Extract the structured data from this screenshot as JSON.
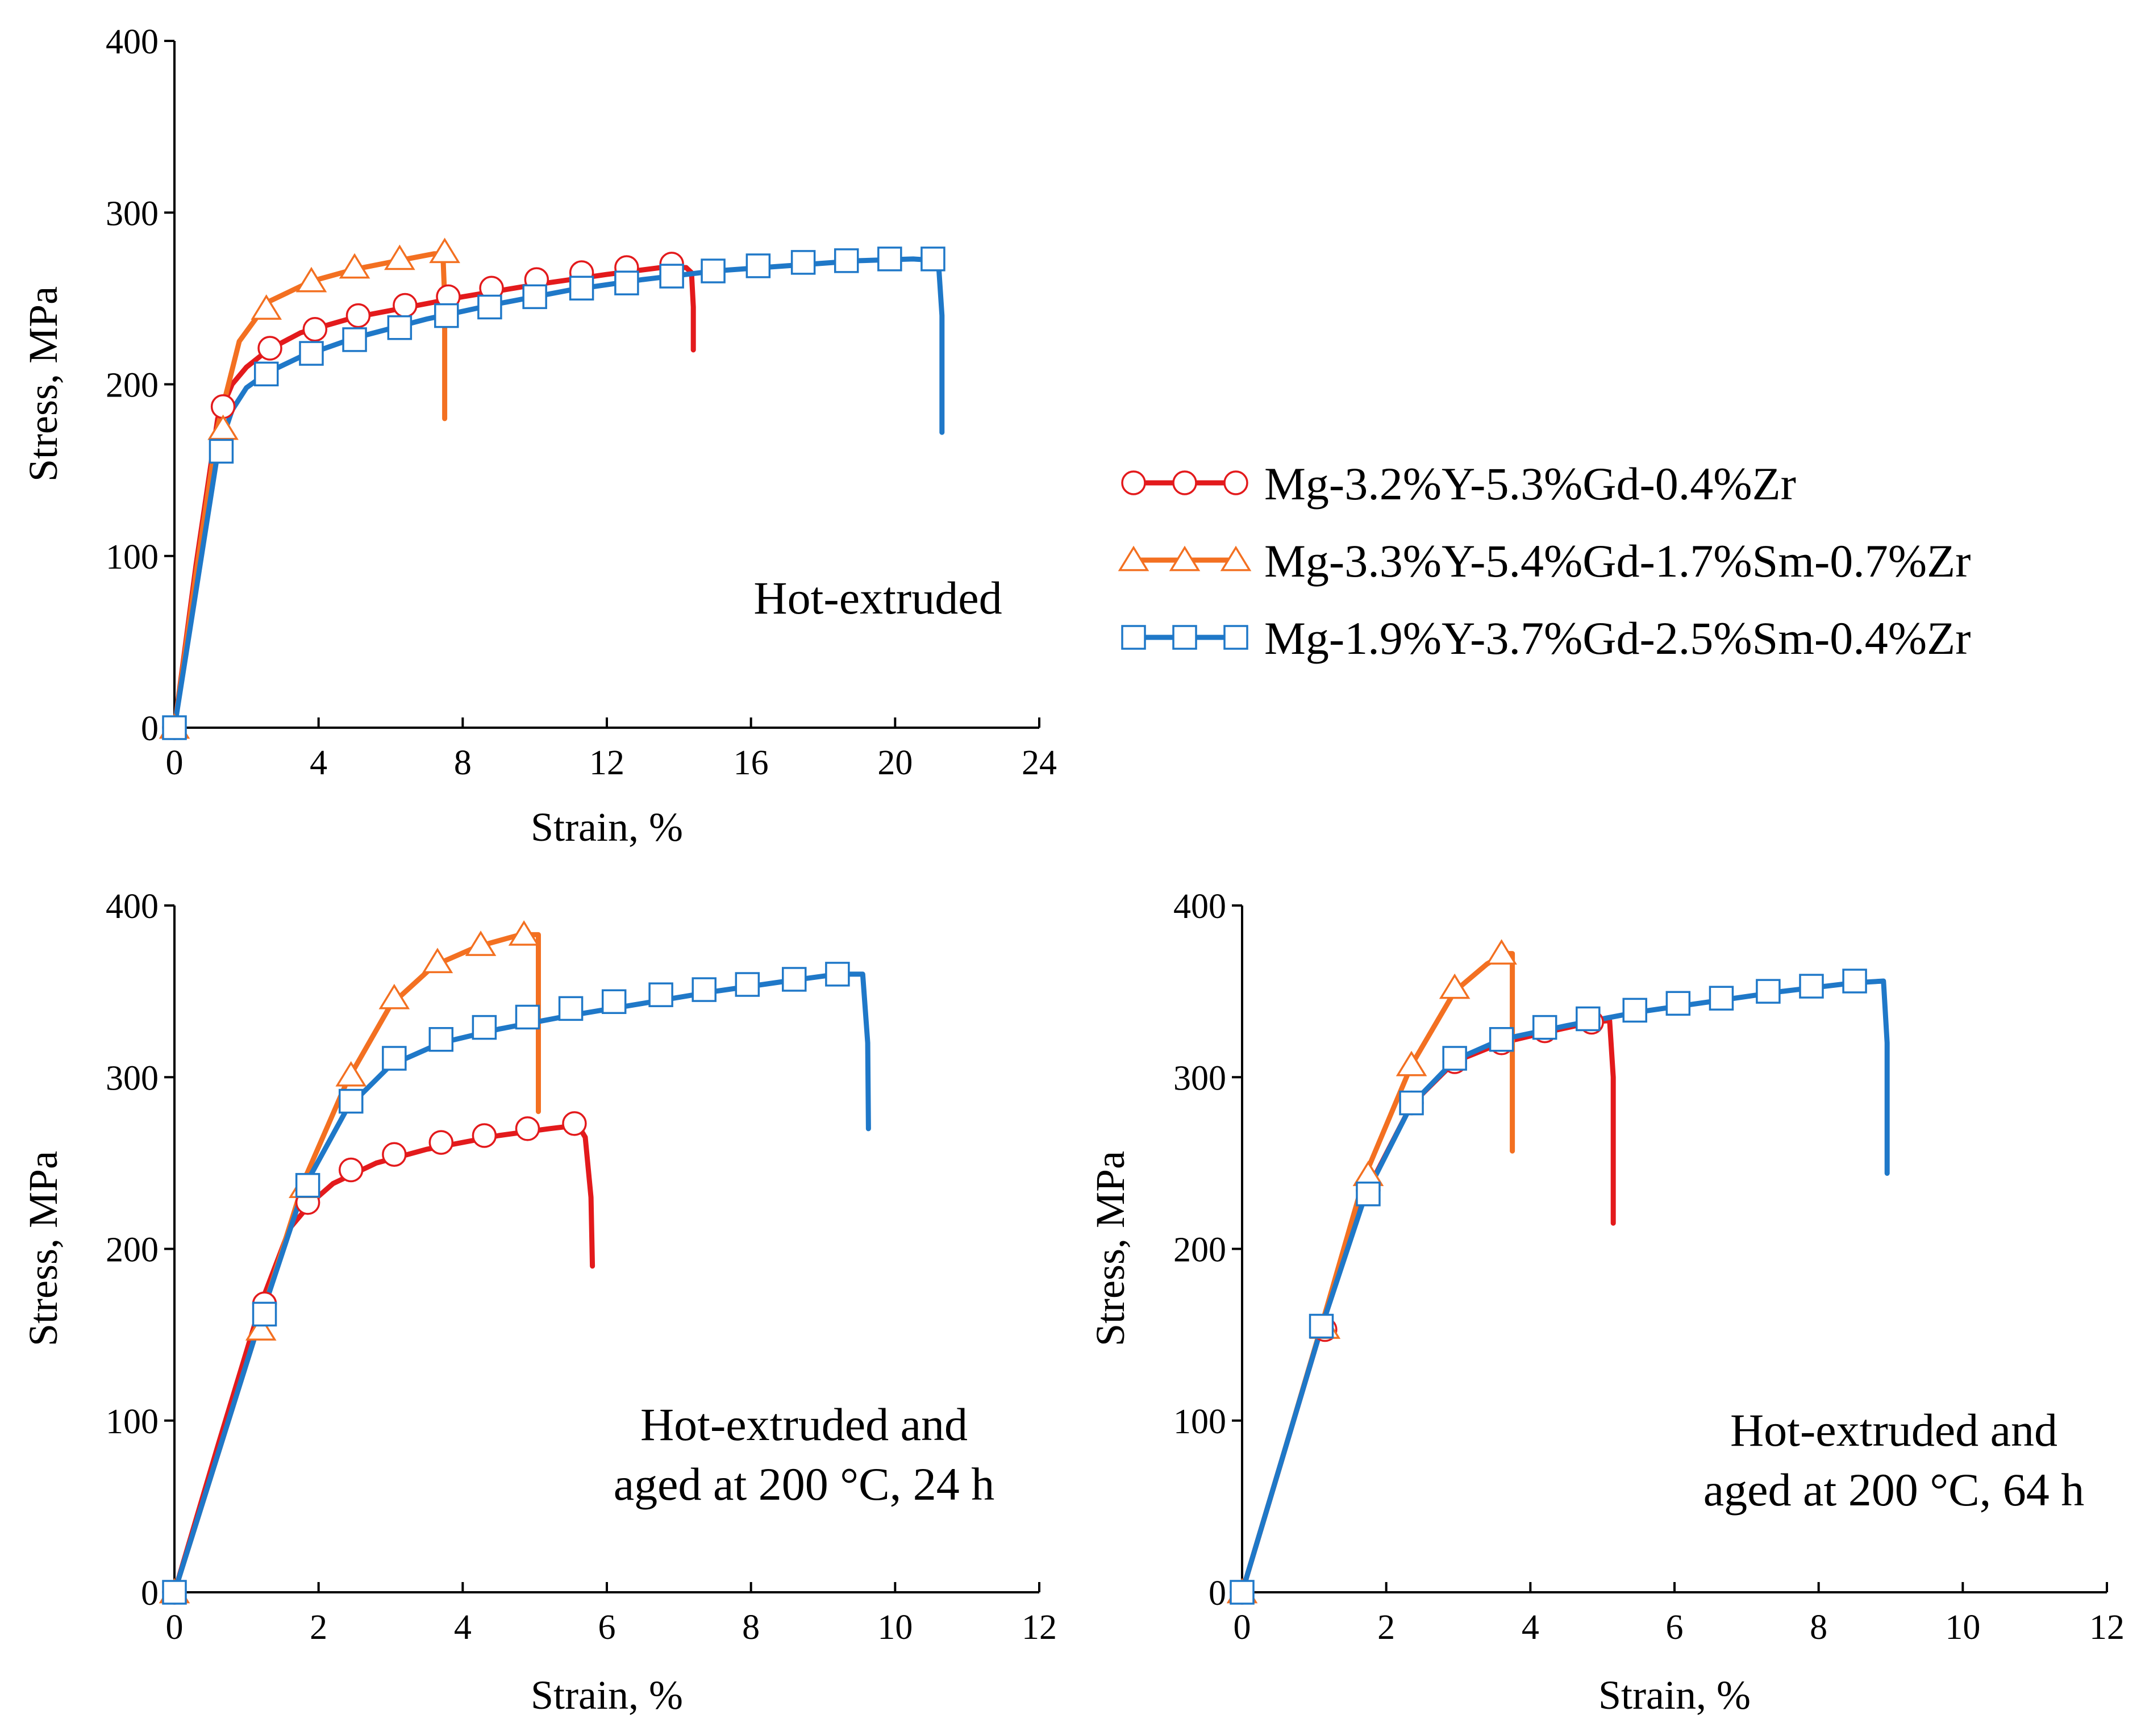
{
  "series_styles": [
    {
      "name": "Mg-3.2%Y-5.3%Gd-0.4%Zr",
      "color": "#e31a1c",
      "marker": "circle"
    },
    {
      "name": "Mg-3.3%Y-5.4%Gd-1.7%Sm-0.7%Zr",
      "color": "#f37021",
      "marker": "triangle"
    },
    {
      "name": "Mg-1.9%Y-3.7%Gd-2.5%Sm-0.4%Zr",
      "color": "#1f78c8",
      "marker": "square"
    }
  ],
  "legend": {
    "items": [
      {
        "label": "Mg-3.2%Y-5.3%Gd-0.4%Zr"
      },
      {
        "label": "Mg-3.3%Y-5.4%Gd-1.7%Sm-0.7%Zr"
      },
      {
        "label": "Mg-1.9%Y-3.7%Gd-2.5%Sm-0.4%Zr"
      }
    ]
  },
  "chart_data": [
    {
      "type": "line",
      "title": "",
      "annotation": [
        "Hot-extruded"
      ],
      "xlabel": "Strain, %",
      "ylabel": "Stress, MPa",
      "xlim": [
        0,
        24
      ],
      "ylim": [
        0,
        400
      ],
      "xticks": [
        0,
        4,
        8,
        12,
        16,
        20,
        24
      ],
      "yticks": [
        0,
        100,
        200,
        300,
        400
      ],
      "series": [
        {
          "name": "Mg-3.2%Y-5.3%Gd-0.4%Zr",
          "x": [
            0,
            0.6,
            1.2,
            1.6,
            2.0,
            2.6,
            3.5,
            5.0,
            6.5,
            8.0,
            10.0,
            12.0,
            13.5,
            14.2,
            14.35,
            14.4,
            14.4
          ],
          "y": [
            0,
            95,
            180,
            200,
            210,
            220,
            230,
            239,
            245,
            251,
            258,
            264,
            268,
            268,
            265,
            245,
            220
          ],
          "markers_x": [
            0,
            1.35,
            2.65,
            3.9,
            5.1,
            6.4,
            7.6,
            8.8,
            10.05,
            11.3,
            12.55,
            13.8
          ],
          "markers_y": [
            0,
            187,
            221,
            232,
            240,
            246,
            251,
            256,
            261,
            265,
            268,
            270
          ]
        },
        {
          "name": "Mg-3.3%Y-5.4%Gd-1.7%Sm-0.7%Zr",
          "x": [
            0,
            0.6,
            1.2,
            1.8,
            2.6,
            3.8,
            5.0,
            6.2,
            7.2,
            7.45,
            7.5,
            7.5
          ],
          "y": [
            0,
            90,
            175,
            225,
            248,
            260,
            267,
            272,
            276,
            276,
            250,
            180
          ],
          "markers_x": [
            0,
            1.35,
            2.55,
            3.8,
            5.0,
            6.25,
            7.5
          ],
          "markers_y": [
            0,
            174,
            244,
            260,
            268,
            273,
            277
          ]
        },
        {
          "name": "Mg-1.9%Y-3.7%Gd-2.5%Sm-0.4%Zr",
          "x": [
            0,
            0.6,
            1.2,
            1.6,
            2.0,
            2.6,
            3.5,
            5.0,
            7.0,
            9.0,
            11.0,
            13.0,
            15.0,
            17.0,
            19.0,
            20.5,
            21.2,
            21.3,
            21.3
          ],
          "y": [
            0,
            80,
            160,
            185,
            198,
            207,
            216,
            227,
            238,
            247,
            255,
            261,
            266,
            269,
            272,
            273,
            272,
            240,
            172
          ],
          "markers_x": [
            0,
            1.3,
            2.55,
            3.8,
            5.0,
            6.25,
            7.55,
            8.75,
            10.0,
            11.3,
            12.55,
            13.8,
            14.95,
            16.2,
            17.45,
            18.65,
            19.85,
            21.05
          ],
          "markers_y": [
            0,
            161,
            206,
            218,
            226,
            233,
            240,
            245,
            251,
            256,
            259,
            263,
            266,
            269,
            271,
            272,
            273,
            273
          ]
        }
      ]
    },
    {
      "type": "line",
      "title": "",
      "annotation": [
        "Hot-extruded and",
        "aged at 200 °C, 24 h"
      ],
      "xlabel": "Strain, %",
      "ylabel": "Stress, MPa",
      "xlim": [
        0,
        12
      ],
      "ylim": [
        0,
        400
      ],
      "xticks": [
        0,
        2,
        4,
        6,
        8,
        10,
        12
      ],
      "yticks": [
        0,
        100,
        200,
        300,
        400
      ],
      "series": [
        {
          "name": "Mg-3.2%Y-5.3%Gd-0.4%Zr",
          "x": [
            0,
            0.6,
            1.2,
            1.6,
            1.9,
            2.2,
            2.8,
            3.5,
            4.5,
            5.2,
            5.6,
            5.7,
            5.78,
            5.8
          ],
          "y": [
            0,
            85,
            168,
            212,
            227,
            238,
            250,
            258,
            266,
            270,
            272,
            265,
            230,
            190
          ],
          "markers_x": [
            0,
            1.25,
            1.85,
            2.45,
            3.05,
            3.7,
            4.3,
            4.9,
            5.55
          ],
          "markers_y": [
            0,
            168,
            227,
            246,
            255,
            262,
            266,
            270,
            273
          ]
        },
        {
          "name": "Mg-3.3%Y-5.4%Gd-1.7%Sm-0.7%Zr",
          "x": [
            0,
            0.6,
            1.2,
            1.8,
            2.4,
            3.0,
            3.6,
            4.2,
            4.8,
            5.05,
            5.05,
            5.05
          ],
          "y": [
            0,
            80,
            160,
            240,
            298,
            342,
            365,
            376,
            383,
            383,
            350,
            280
          ],
          "markers_x": [
            0,
            1.2,
            1.8,
            2.45,
            3.05,
            3.65,
            4.25,
            4.85
          ],
          "markers_y": [
            0,
            153,
            236,
            301,
            346,
            367,
            377,
            383
          ]
        },
        {
          "name": "Mg-1.9%Y-3.7%Gd-2.5%Sm-0.4%Zr",
          "x": [
            0,
            0.6,
            1.2,
            1.8,
            2.4,
            3.0,
            3.7,
            4.5,
            5.5,
            6.5,
            7.5,
            8.5,
            9.2,
            9.55,
            9.62,
            9.63
          ],
          "y": [
            0,
            80,
            160,
            236,
            282,
            307,
            320,
            328,
            336,
            343,
            350,
            356,
            360,
            360,
            320,
            270
          ],
          "markers_x": [
            0,
            1.25,
            1.85,
            2.45,
            3.05,
            3.7,
            4.3,
            4.9,
            5.5,
            6.1,
            6.75,
            7.35,
            7.95,
            8.6,
            9.2
          ],
          "markers_y": [
            0,
            162,
            237,
            286,
            311,
            322,
            329,
            335,
            340,
            344,
            348,
            351,
            354,
            357,
            360
          ]
        }
      ]
    },
    {
      "type": "line",
      "title": "",
      "annotation": [
        "Hot-extruded and",
        "aged at 200 °C, 64 h"
      ],
      "xlabel": "Strain, %",
      "ylabel": "Stress, MPa",
      "xlim": [
        0,
        12
      ],
      "ylim": [
        0,
        400
      ],
      "xticks": [
        0,
        2,
        4,
        6,
        8,
        10,
        12
      ],
      "yticks": [
        0,
        100,
        200,
        300,
        400
      ],
      "series": [
        {
          "name": "Mg-3.2%Y-5.3%Gd-0.4%Zr",
          "x": [
            0,
            0.55,
            1.1,
            1.7,
            2.35,
            2.95,
            3.6,
            4.2,
            4.85,
            5.1,
            5.15,
            5.15
          ],
          "y": [
            0,
            77,
            154,
            231,
            284,
            309,
            320,
            326,
            332,
            333,
            300,
            215
          ],
          "markers_x": [
            0,
            1.15,
            1.75,
            2.35,
            2.95,
            3.6,
            4.2,
            4.85
          ],
          "markers_y": [
            0,
            153,
            234,
            285,
            309,
            320,
            327,
            332
          ]
        },
        {
          "name": "Mg-3.3%Y-5.4%Gd-1.7%Sm-0.7%Zr",
          "x": [
            0,
            0.55,
            1.1,
            1.7,
            2.35,
            2.95,
            3.4,
            3.65,
            3.75,
            3.75,
            3.75
          ],
          "y": [
            0,
            77,
            155,
            242,
            307,
            350,
            366,
            372,
            372,
            330,
            257
          ],
          "markers_x": [
            0,
            1.15,
            1.75,
            2.35,
            2.95,
            3.6
          ],
          "markers_y": [
            0,
            154,
            243,
            307,
            352,
            372
          ]
        },
        {
          "name": "Mg-1.9%Y-3.7%Gd-2.5%Sm-0.4%Zr",
          "x": [
            0,
            0.55,
            1.1,
            1.7,
            2.35,
            2.95,
            3.6,
            4.5,
            5.5,
            6.5,
            7.5,
            8.5,
            8.9,
            8.95,
            8.95
          ],
          "y": [
            0,
            77,
            154,
            230,
            284,
            310,
            322,
            330,
            338,
            344,
            350,
            355,
            356,
            320,
            244
          ],
          "markers_x": [
            0,
            1.1,
            1.75,
            2.35,
            2.95,
            3.6,
            4.2,
            4.8,
            5.45,
            6.05,
            6.65,
            7.3,
            7.9,
            8.5
          ],
          "markers_y": [
            0,
            155,
            232,
            285,
            311,
            322,
            329,
            334,
            339,
            343,
            346,
            350,
            353,
            356
          ]
        }
      ]
    }
  ]
}
